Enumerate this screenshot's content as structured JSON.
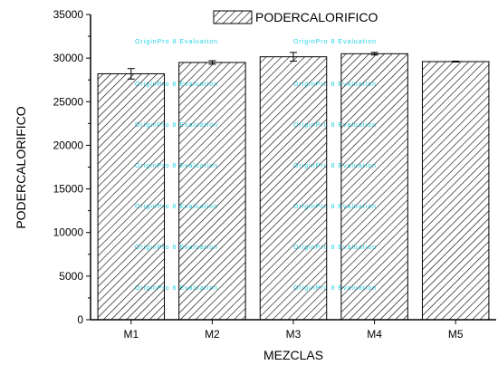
{
  "chart_data": {
    "type": "bar",
    "categories": [
      "M1",
      "M2",
      "M3",
      "M4",
      "M5"
    ],
    "series": [
      {
        "name": "PODERCALORIFICO",
        "values": [
          28200,
          29500,
          30150,
          30500,
          29600
        ],
        "errors": [
          600,
          200,
          500,
          150,
          50
        ]
      }
    ],
    "xlabel": "MEZCLAS",
    "ylabel": "PODERCALORIFICO",
    "ylim": [
      0,
      35000
    ],
    "yticks": [
      "0",
      "5000",
      "10000",
      "15000",
      "20000",
      "25000",
      "30000",
      "35000"
    ],
    "yticks_values": [
      0,
      5000,
      10000,
      15000,
      20000,
      25000,
      30000,
      35000
    ],
    "bar_pattern": "diagonal-hatch",
    "grid": false,
    "legend_position": "top-right"
  },
  "watermark": "OriginPro 8 Evaluation",
  "colors": {
    "axis": "#000000",
    "bar_stroke": "#000000",
    "hatch": "#000000",
    "watermark": "#22d3e6"
  }
}
